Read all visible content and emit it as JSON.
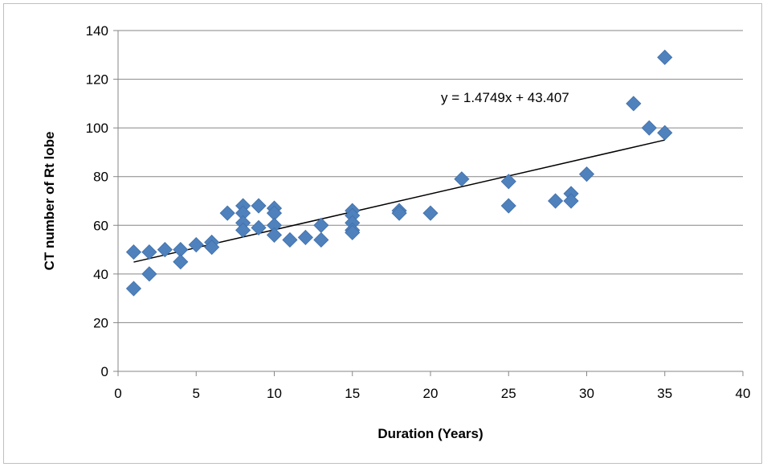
{
  "chart_data": {
    "type": "scatter",
    "title": "",
    "xlabel": "Duration (Years)",
    "ylabel": "CT number of Rt lobe",
    "xlim": [
      0,
      40
    ],
    "ylim": [
      0,
      140
    ],
    "x_ticks": [
      0,
      5,
      10,
      15,
      20,
      25,
      30,
      35,
      40
    ],
    "y_ticks": [
      0,
      20,
      40,
      60,
      80,
      100,
      120,
      140
    ],
    "grid": "horizontal",
    "legend": "none",
    "marker": "diamond",
    "marker_color": "#4f81bd",
    "trendline": {
      "equation_label": "y = 1.4749x + 43.407",
      "slope": 1.4749,
      "intercept": 43.407,
      "x_range": [
        1,
        35
      ],
      "color": "#000000"
    },
    "points": [
      {
        "x": 1,
        "y": 49
      },
      {
        "x": 1,
        "y": 34
      },
      {
        "x": 2,
        "y": 49
      },
      {
        "x": 2,
        "y": 40
      },
      {
        "x": 3,
        "y": 50
      },
      {
        "x": 4,
        "y": 50
      },
      {
        "x": 4,
        "y": 45
      },
      {
        "x": 5,
        "y": 52
      },
      {
        "x": 6,
        "y": 53
      },
      {
        "x": 6,
        "y": 51
      },
      {
        "x": 7,
        "y": 65
      },
      {
        "x": 8,
        "y": 68
      },
      {
        "x": 8,
        "y": 65
      },
      {
        "x": 8,
        "y": 61
      },
      {
        "x": 8,
        "y": 58
      },
      {
        "x": 9,
        "y": 68
      },
      {
        "x": 9,
        "y": 59
      },
      {
        "x": 10,
        "y": 67
      },
      {
        "x": 10,
        "y": 65
      },
      {
        "x": 10,
        "y": 60
      },
      {
        "x": 10,
        "y": 56
      },
      {
        "x": 11,
        "y": 54
      },
      {
        "x": 12,
        "y": 55
      },
      {
        "x": 13,
        "y": 60
      },
      {
        "x": 13,
        "y": 54
      },
      {
        "x": 15,
        "y": 66
      },
      {
        "x": 15,
        "y": 64
      },
      {
        "x": 15,
        "y": 61
      },
      {
        "x": 15,
        "y": 58
      },
      {
        "x": 15,
        "y": 57
      },
      {
        "x": 18,
        "y": 66
      },
      {
        "x": 18,
        "y": 65
      },
      {
        "x": 20,
        "y": 65
      },
      {
        "x": 22,
        "y": 79
      },
      {
        "x": 25,
        "y": 78
      },
      {
        "x": 25,
        "y": 68
      },
      {
        "x": 28,
        "y": 70
      },
      {
        "x": 29,
        "y": 73
      },
      {
        "x": 29,
        "y": 70
      },
      {
        "x": 30,
        "y": 81
      },
      {
        "x": 33,
        "y": 110
      },
      {
        "x": 34,
        "y": 100
      },
      {
        "x": 35,
        "y": 129
      },
      {
        "x": 35,
        "y": 98
      }
    ]
  }
}
